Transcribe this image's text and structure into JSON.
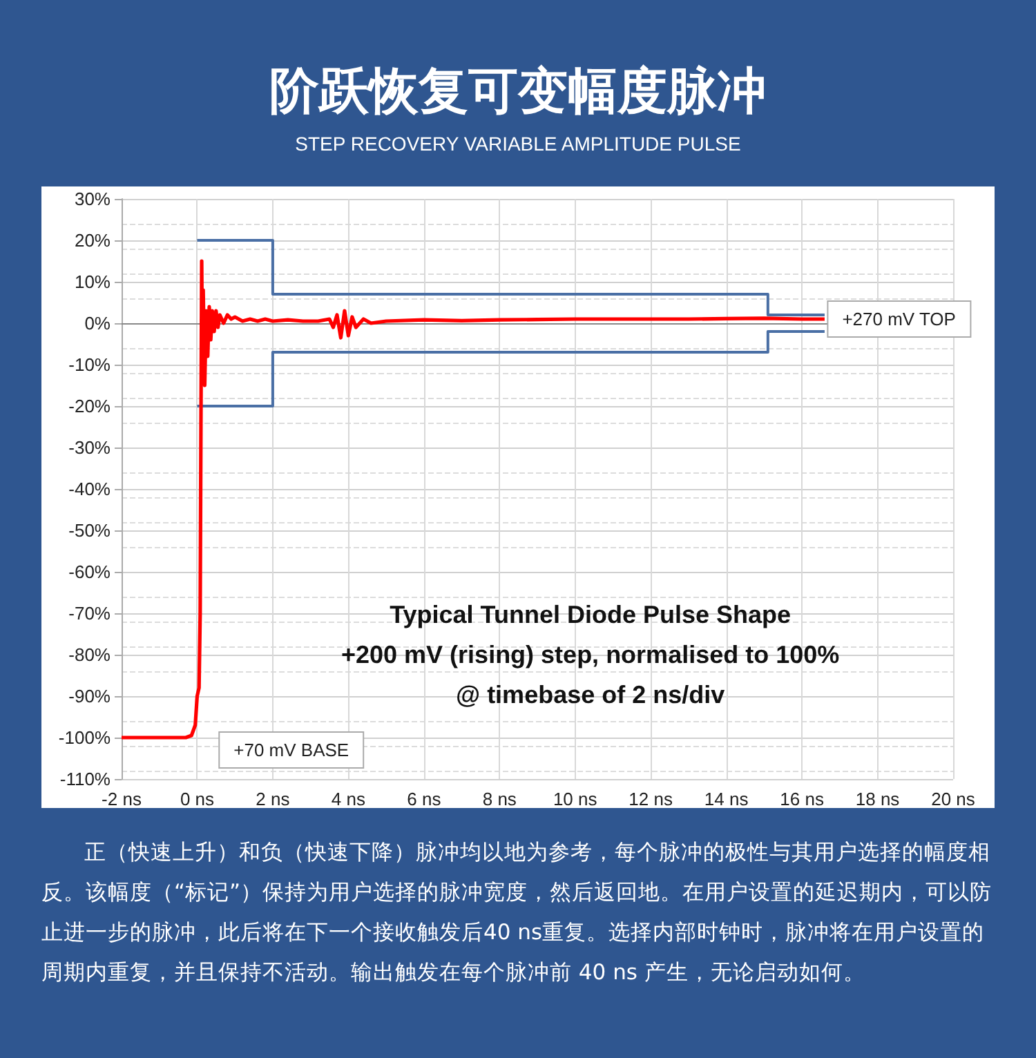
{
  "chart_data": {
    "type": "line",
    "title": "阶跃恢复可变幅度脉冲",
    "subtitle": "STEP RECOVERY VARIABLE AMPLITUDE PULSE",
    "xlim": [
      -2,
      20
    ],
    "xticks": [
      {
        "value": -2,
        "label": "-2 ns"
      },
      {
        "value": 0,
        "label": "0 ns"
      },
      {
        "value": 2,
        "label": "2 ns"
      },
      {
        "value": 4,
        "label": "4 ns"
      },
      {
        "value": 6,
        "label": "6 ns"
      },
      {
        "value": 8,
        "label": "8 ns"
      },
      {
        "value": 10,
        "label": "10 ns"
      },
      {
        "value": 12,
        "label": "12 ns"
      },
      {
        "value": 14,
        "label": "14 ns"
      },
      {
        "value": 16,
        "label": "16 ns"
      },
      {
        "value": 18,
        "label": "18 ns"
      },
      {
        "value": 20,
        "label": "20 ns"
      }
    ],
    "ylim": [
      -110,
      30
    ],
    "yticks": [
      {
        "value": 30,
        "label": "30%"
      },
      {
        "value": 20,
        "label": "20%"
      },
      {
        "value": 10,
        "label": "10%"
      },
      {
        "value": 0,
        "label": "0%"
      },
      {
        "value": -10,
        "label": "-10%"
      },
      {
        "value": -20,
        "label": "-20%"
      },
      {
        "value": -30,
        "label": "-30%"
      },
      {
        "value": -40,
        "label": "-40%"
      },
      {
        "value": -50,
        "label": "-50%"
      },
      {
        "value": -60,
        "label": "-60%"
      },
      {
        "value": -70,
        "label": "-70%"
      },
      {
        "value": -80,
        "label": "-80%"
      },
      {
        "value": -90,
        "label": "-90%"
      },
      {
        "value": -100,
        "label": "-100%"
      },
      {
        "value": -110,
        "label": "-110%"
      }
    ],
    "grid": true,
    "marker": "none",
    "line_style": "solid",
    "series": [
      {
        "color": "#4a6fa5",
        "x": [
          0,
          2,
          2,
          15.1,
          15.1,
          16.6
        ],
        "values": [
          20,
          20,
          7,
          7,
          2,
          2
        ]
      },
      {
        "color": "#4a6fa5",
        "x": [
          0,
          2,
          2,
          15.1,
          15.1,
          16.6
        ],
        "values": [
          -20,
          -20,
          -7,
          -7,
          -2,
          -2
        ]
      },
      {
        "color": "#ff0000",
        "x": [
          -2,
          -1.5,
          -1,
          -0.5,
          -0.3,
          -0.15,
          -0.05,
          0,
          0.05,
          0.08,
          0.1,
          0.12,
          0.14,
          0.16,
          0.2,
          0.24,
          0.28,
          0.32,
          0.36,
          0.4,
          0.45,
          0.5,
          0.55,
          0.6,
          0.7,
          0.8,
          0.9,
          1,
          1.2,
          1.4,
          1.6,
          1.8,
          2,
          2.4,
          2.8,
          3.2,
          3.5,
          3.6,
          3.7,
          3.8,
          3.9,
          4,
          4.1,
          4.2,
          4.4,
          4.6,
          5,
          6,
          7,
          8,
          9,
          10,
          11,
          12,
          13,
          14,
          15,
          16,
          16.6
        ],
        "values": [
          -100,
          -100,
          -100,
          -100,
          -100,
          -99.5,
          -97,
          -90,
          -88,
          -70,
          -25,
          15,
          -10,
          8,
          -15,
          3,
          -8,
          4,
          -4,
          3,
          -2,
          3,
          -1,
          2,
          0,
          2,
          1,
          1.5,
          0.5,
          1,
          0.5,
          1,
          0.5,
          0.8,
          0.5,
          0.5,
          1,
          -1,
          2,
          -3.5,
          3,
          -3,
          1.5,
          -1,
          1,
          0,
          0.5,
          0.8,
          0.6,
          0.8,
          0.9,
          1,
          1,
          1,
          1,
          1.1,
          1.2,
          1,
          1
        ]
      }
    ],
    "annotations": [
      {
        "text": "+270 mV TOP",
        "x": 16.7,
        "y": 1
      },
      "+70 mV BASE",
      "Typical Tunnel Diode Pulse Shape\n+200 mV (rising) step, normalised to 100%\n@ timebase of 2 ns/div",
      "正（快速上升）和负（快速下降）脉冲均以地为参考，每个脉冲的极性与其用户选择的幅度相反。该幅度（“标记”）保持为用户选择的脉冲宽度，然后返回地。在用户设置的延迟期内，可以防止进一步的脉冲，此后将在下一个接收触发后40 ns重复。选择内部时钟时，脉冲将在用户设置的周期内重复，并且保持不活动。输出触发在每个脉冲前 40 ns 产生，无论启动如何。"
    ]
  }
}
